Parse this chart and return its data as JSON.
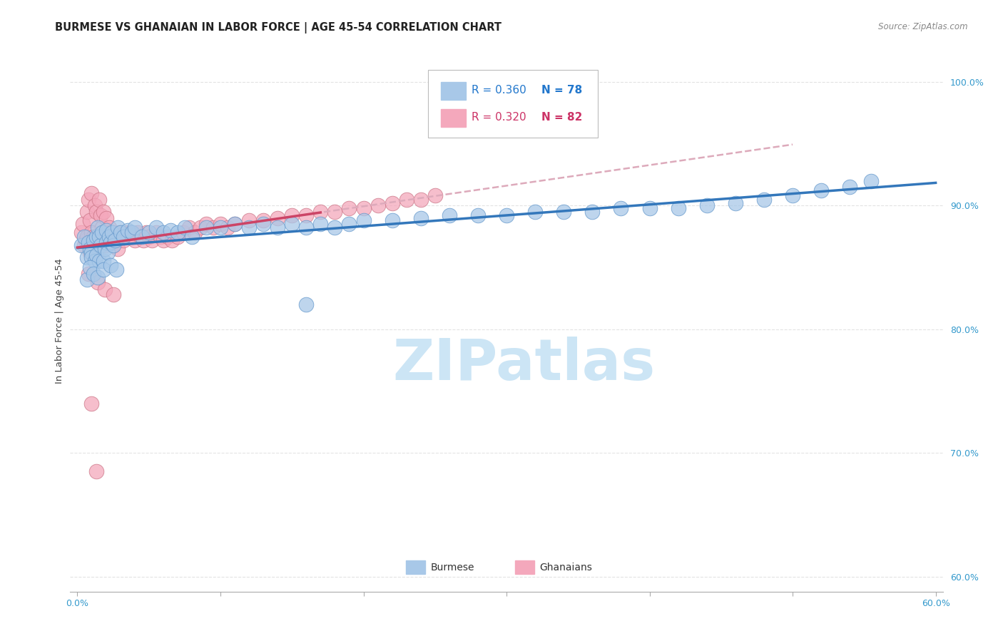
{
  "title": "BURMESE VS GHANAIAN IN LABOR FORCE | AGE 45-54 CORRELATION CHART",
  "source": "Source: ZipAtlas.com",
  "ylabel": "In Labor Force | Age 45-54",
  "R_burmese": 0.36,
  "N_burmese": 78,
  "R_ghanaian": 0.32,
  "N_ghanaian": 82,
  "burmese_color": "#a8c8e8",
  "ghanaian_color": "#f4a8bc",
  "burmese_edge": "#6699cc",
  "ghanaian_edge": "#cc7788",
  "burmese_line_color": "#3377bb",
  "ghanaian_line_color": "#cc4466",
  "ghanaian_dash_color": "#ddaabb",
  "bg_color": "#ffffff",
  "grid_color": "#dddddd",
  "watermark_text": "ZIPatlas",
  "watermark_color": "#cce5f5",
  "burmese_x": [
    0.003,
    0.005,
    0.007,
    0.008,
    0.009,
    0.01,
    0.01,
    0.011,
    0.012,
    0.013,
    0.013,
    0.014,
    0.015,
    0.015,
    0.016,
    0.017,
    0.018,
    0.019,
    0.02,
    0.02,
    0.021,
    0.022,
    0.023,
    0.024,
    0.025,
    0.026,
    0.028,
    0.03,
    0.032,
    0.035,
    0.038,
    0.04,
    0.045,
    0.05,
    0.055,
    0.06,
    0.065,
    0.07,
    0.075,
    0.08,
    0.09,
    0.1,
    0.11,
    0.12,
    0.13,
    0.14,
    0.15,
    0.16,
    0.17,
    0.18,
    0.19,
    0.2,
    0.22,
    0.24,
    0.26,
    0.28,
    0.3,
    0.32,
    0.34,
    0.36,
    0.38,
    0.4,
    0.42,
    0.44,
    0.46,
    0.48,
    0.5,
    0.52,
    0.54,
    0.555,
    0.007,
    0.009,
    0.011,
    0.014,
    0.018,
    0.023,
    0.027,
    0.16
  ],
  "burmese_y": [
    0.868,
    0.875,
    0.858,
    0.87,
    0.865,
    0.862,
    0.858,
    0.872,
    0.855,
    0.875,
    0.86,
    0.882,
    0.855,
    0.875,
    0.868,
    0.878,
    0.855,
    0.865,
    0.88,
    0.87,
    0.862,
    0.875,
    0.87,
    0.878,
    0.868,
    0.872,
    0.882,
    0.878,
    0.875,
    0.88,
    0.878,
    0.882,
    0.875,
    0.878,
    0.882,
    0.878,
    0.88,
    0.878,
    0.882,
    0.875,
    0.882,
    0.882,
    0.885,
    0.882,
    0.885,
    0.882,
    0.885,
    0.882,
    0.885,
    0.882,
    0.885,
    0.888,
    0.888,
    0.89,
    0.892,
    0.892,
    0.892,
    0.895,
    0.895,
    0.895,
    0.898,
    0.898,
    0.898,
    0.9,
    0.902,
    0.905,
    0.908,
    0.912,
    0.915,
    0.92,
    0.84,
    0.85,
    0.845,
    0.842,
    0.848,
    0.852,
    0.848,
    0.82
  ],
  "ghanaian_x": [
    0.003,
    0.004,
    0.005,
    0.006,
    0.007,
    0.007,
    0.008,
    0.009,
    0.009,
    0.01,
    0.01,
    0.011,
    0.012,
    0.012,
    0.013,
    0.014,
    0.015,
    0.015,
    0.016,
    0.017,
    0.018,
    0.018,
    0.019,
    0.02,
    0.02,
    0.021,
    0.022,
    0.023,
    0.024,
    0.025,
    0.026,
    0.027,
    0.028,
    0.029,
    0.03,
    0.032,
    0.033,
    0.035,
    0.037,
    0.038,
    0.04,
    0.042,
    0.044,
    0.046,
    0.048,
    0.05,
    0.052,
    0.055,
    0.058,
    0.06,
    0.063,
    0.066,
    0.07,
    0.074,
    0.078,
    0.082,
    0.086,
    0.09,
    0.095,
    0.1,
    0.105,
    0.11,
    0.12,
    0.13,
    0.14,
    0.15,
    0.16,
    0.17,
    0.18,
    0.19,
    0.2,
    0.21,
    0.22,
    0.23,
    0.24,
    0.25,
    0.008,
    0.014,
    0.019,
    0.025,
    0.01,
    0.013
  ],
  "ghanaian_y": [
    0.878,
    0.885,
    0.868,
    0.872,
    0.895,
    0.875,
    0.905,
    0.862,
    0.888,
    0.878,
    0.91,
    0.875,
    0.9,
    0.868,
    0.895,
    0.87,
    0.905,
    0.875,
    0.892,
    0.882,
    0.878,
    0.895,
    0.868,
    0.89,
    0.878,
    0.875,
    0.882,
    0.872,
    0.878,
    0.868,
    0.875,
    0.872,
    0.865,
    0.878,
    0.875,
    0.872,
    0.878,
    0.875,
    0.878,
    0.875,
    0.872,
    0.878,
    0.875,
    0.872,
    0.878,
    0.875,
    0.872,
    0.878,
    0.875,
    0.872,
    0.875,
    0.872,
    0.875,
    0.878,
    0.882,
    0.878,
    0.882,
    0.885,
    0.882,
    0.885,
    0.882,
    0.885,
    0.888,
    0.888,
    0.89,
    0.892,
    0.892,
    0.895,
    0.895,
    0.898,
    0.898,
    0.9,
    0.902,
    0.905,
    0.905,
    0.908,
    0.845,
    0.838,
    0.832,
    0.828,
    0.74,
    0.685
  ],
  "xlim": [
    -0.005,
    0.605
  ],
  "ylim": [
    0.588,
    1.025
  ],
  "xtick_vals": [
    0.0,
    0.1,
    0.2,
    0.3,
    0.4,
    0.5,
    0.6
  ],
  "ytick_vals": [
    0.6,
    0.7,
    0.8,
    0.9,
    1.0
  ],
  "burmese_reg": [
    0.082,
    0.862
  ],
  "ghanaian_reg": [
    0.35,
    0.858
  ],
  "title_fontsize": 10.5,
  "tick_fontsize": 9,
  "axis_label_fontsize": 9.5
}
